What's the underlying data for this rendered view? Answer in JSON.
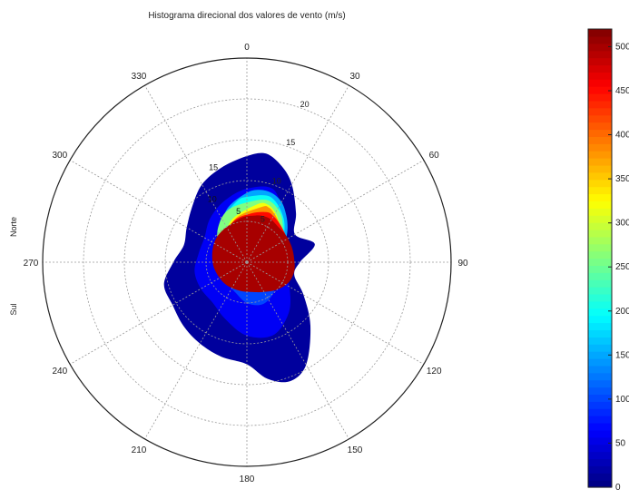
{
  "chart_data": {
    "type": "heatmap",
    "projection": "polar",
    "title": "Histograma direcional dos valores de vento (m/s)",
    "side_labels": [
      "Norte",
      "Sul"
    ],
    "angle_ticks": [
      0,
      30,
      60,
      90,
      120,
      150,
      180,
      210,
      240,
      270,
      300,
      330
    ],
    "angle_direction": "clockwise",
    "angle_zero": "top",
    "radial_ticks": [
      5,
      10,
      15,
      20
    ],
    "radial_max": 25,
    "grid": true,
    "colormap": "jet",
    "colorbar": {
      "placement": "right",
      "range": [
        0,
        520
      ],
      "ticks": [
        0,
        50,
        100,
        150,
        200,
        250,
        300,
        350,
        400,
        450,
        500
      ],
      "tick_labels": [
        "0",
        "50",
        "100",
        "150",
        "200",
        "250",
        "300",
        "350",
        "400",
        "450",
        "500"
      ]
    },
    "peak": {
      "angle_deg": 25,
      "radius": 6,
      "value": 520
    },
    "contour_levels": [
      {
        "value": 15,
        "outline": [
          [
            0,
            13
          ],
          [
            10,
            13.5
          ],
          [
            20,
            12.5
          ],
          [
            30,
            11
          ],
          [
            45,
            8.5
          ],
          [
            60,
            6.8
          ],
          [
            75,
            8.6
          ],
          [
            90,
            6.5
          ],
          [
            105,
            6
          ],
          [
            120,
            8
          ],
          [
            135,
            11
          ],
          [
            150,
            14.5
          ],
          [
            160,
            15.5
          ],
          [
            170,
            14.5
          ],
          [
            180,
            12.5
          ],
          [
            195,
            12
          ],
          [
            210,
            11.5
          ],
          [
            225,
            11
          ],
          [
            240,
            10.5
          ],
          [
            255,
            10.5
          ],
          [
            270,
            9
          ],
          [
            285,
            8
          ],
          [
            300,
            8.5
          ],
          [
            315,
            9.5
          ],
          [
            330,
            11
          ],
          [
            345,
            12
          ]
        ]
      },
      {
        "value": 60,
        "outline": [
          [
            0,
            9
          ],
          [
            20,
            9.5
          ],
          [
            40,
            7
          ],
          [
            60,
            5.5
          ],
          [
            80,
            4.5
          ],
          [
            100,
            4.5
          ],
          [
            120,
            6
          ],
          [
            140,
            8
          ],
          [
            160,
            9.5
          ],
          [
            180,
            9
          ],
          [
            200,
            7.5
          ],
          [
            220,
            6.5
          ],
          [
            240,
            6.5
          ],
          [
            260,
            6.5
          ],
          [
            280,
            6
          ],
          [
            300,
            6
          ],
          [
            320,
            7
          ],
          [
            340,
            8
          ]
        ]
      },
      {
        "value": 100,
        "outline": [
          [
            0,
            7
          ],
          [
            20,
            7
          ],
          [
            40,
            5
          ],
          [
            60,
            4
          ],
          [
            80,
            3.5
          ],
          [
            100,
            3
          ],
          [
            120,
            4
          ],
          [
            140,
            5
          ],
          [
            160,
            5.5
          ],
          [
            180,
            5
          ],
          [
            200,
            4
          ],
          [
            220,
            3.5
          ],
          [
            240,
            3.5
          ],
          [
            260,
            3.5
          ],
          [
            280,
            4
          ],
          [
            300,
            4.5
          ],
          [
            320,
            5
          ],
          [
            340,
            6
          ]
        ]
      },
      {
        "value": 150,
        "outline": [
          [
            0,
            8.5
          ],
          [
            10,
            9
          ],
          [
            20,
            9
          ],
          [
            30,
            8.5
          ],
          [
            40,
            7.5
          ],
          [
            50,
            6.5
          ],
          [
            60,
            5.5
          ],
          [
            70,
            4.5
          ],
          [
            80,
            3.5
          ],
          [
            90,
            2.5
          ],
          [
            100,
            2
          ],
          [
            110,
            2
          ],
          [
            120,
            2.5
          ],
          [
            140,
            3
          ],
          [
            160,
            3
          ],
          [
            180,
            2.5
          ],
          [
            200,
            2
          ],
          [
            220,
            2
          ],
          [
            240,
            2.5
          ],
          [
            260,
            2.8
          ],
          [
            280,
            3.2
          ],
          [
            300,
            4
          ],
          [
            320,
            5
          ],
          [
            340,
            7
          ]
        ]
      },
      {
        "value": 200,
        "outline": [
          [
            0,
            8
          ],
          [
            20,
            8.5
          ],
          [
            40,
            7
          ],
          [
            60,
            5
          ],
          [
            80,
            3
          ],
          [
            100,
            1.5
          ],
          [
            130,
            1.5
          ],
          [
            160,
            1
          ],
          [
            200,
            1
          ],
          [
            240,
            1.5
          ],
          [
            270,
            2
          ],
          [
            290,
            3
          ],
          [
            310,
            4.5
          ],
          [
            330,
            6
          ],
          [
            350,
            7.5
          ]
        ]
      },
      {
        "value": 260,
        "outline": [
          [
            5,
            7.5
          ],
          [
            20,
            8
          ],
          [
            35,
            7.2
          ],
          [
            50,
            5.8
          ],
          [
            65,
            4.8
          ],
          [
            80,
            4
          ],
          [
            95,
            3.5
          ],
          [
            110,
            3.8
          ],
          [
            130,
            3.5
          ],
          [
            160,
            2.5
          ],
          [
            200,
            1
          ],
          [
            250,
            1.5
          ],
          [
            280,
            2.5
          ],
          [
            300,
            4
          ],
          [
            320,
            5.5
          ],
          [
            340,
            6.8
          ]
        ]
      },
      {
        "value": 320,
        "outline": [
          [
            10,
            7.2
          ],
          [
            20,
            7.5
          ],
          [
            30,
            7
          ],
          [
            40,
            6.2
          ],
          [
            55,
            5.4
          ],
          [
            70,
            4.8
          ],
          [
            85,
            4.5
          ],
          [
            100,
            4.5
          ],
          [
            120,
            4
          ],
          [
            140,
            3.5
          ],
          [
            170,
            3
          ],
          [
            200,
            2
          ],
          [
            240,
            1.5
          ],
          [
            280,
            2
          ],
          [
            310,
            3.5
          ],
          [
            340,
            5.5
          ]
        ]
      },
      {
        "value": 380,
        "outline": [
          [
            15,
            7
          ],
          [
            22,
            7.2
          ],
          [
            30,
            6.8
          ],
          [
            40,
            6.2
          ],
          [
            55,
            5.6
          ],
          [
            70,
            5.2
          ],
          [
            90,
            5
          ],
          [
            105,
            5
          ],
          [
            125,
            4.5
          ],
          [
            150,
            3.5
          ],
          [
            180,
            2.5
          ],
          [
            220,
            1.5
          ],
          [
            270,
            2
          ],
          [
            310,
            3.5
          ],
          [
            345,
            5.5
          ]
        ]
      },
      {
        "value": 450,
        "outline": [
          [
            22,
            6.6
          ],
          [
            30,
            6.5
          ],
          [
            40,
            6.2
          ],
          [
            55,
            5.8
          ],
          [
            70,
            5.6
          ],
          [
            90,
            5.5
          ],
          [
            105,
            5.5
          ],
          [
            125,
            5
          ],
          [
            150,
            4
          ],
          [
            175,
            3.2
          ],
          [
            210,
            2.5
          ],
          [
            250,
            2.5
          ],
          [
            300,
            3.5
          ],
          [
            340,
            5.2
          ],
          [
            5,
            6
          ]
        ]
      },
      {
        "value": 500,
        "outline": [
          [
            30,
            6
          ],
          [
            40,
            5.8
          ],
          [
            55,
            5.8
          ],
          [
            70,
            5.8
          ],
          [
            85,
            5.8
          ],
          [
            100,
            5.9
          ],
          [
            115,
            5.7
          ],
          [
            130,
            5.1
          ],
          [
            145,
            4.4
          ],
          [
            165,
            3.8
          ],
          [
            195,
            3.6
          ],
          [
            230,
            3.8
          ],
          [
            270,
            4.2
          ],
          [
            310,
            4.8
          ],
          [
            350,
            5.4
          ],
          [
            10,
            5.8
          ],
          [
            20,
            6
          ]
        ]
      }
    ],
    "contour_labels": [
      {
        "text": "5",
        "angle_deg": 350,
        "radius": 6
      },
      {
        "text": "10",
        "angle_deg": 330,
        "radius": 8.5
      },
      {
        "text": "15",
        "angle_deg": 340,
        "radius": 12
      }
    ]
  }
}
